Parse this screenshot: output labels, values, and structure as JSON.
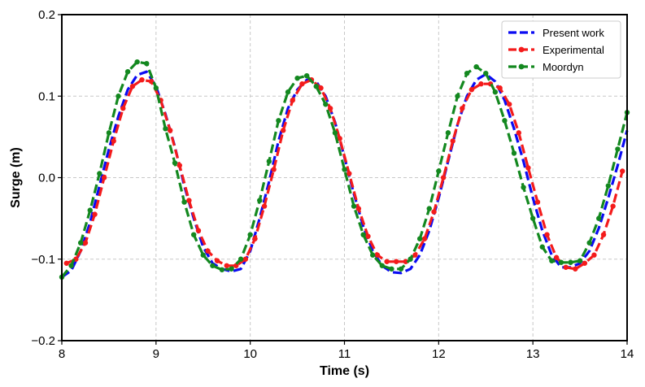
{
  "chart_data": {
    "type": "line",
    "title": "",
    "xlabel": "Time (s)",
    "ylabel": "Surge (m)",
    "xlim": [
      8,
      14
    ],
    "ylim": [
      -0.2,
      0.2
    ],
    "xticks": [
      8,
      9,
      10,
      11,
      12,
      13,
      14
    ],
    "yticks": [
      -0.2,
      -0.1,
      0.0,
      0.1,
      0.2
    ],
    "xtick_labels": [
      "8",
      "9",
      "10",
      "11",
      "12",
      "13",
      "14"
    ],
    "ytick_labels": [
      "−0.2",
      "−0.1",
      "0.0",
      "0.1",
      "0.2"
    ],
    "grid": true,
    "legend_position": "top-right",
    "series": [
      {
        "name": "Present work",
        "color": "#0b0bf2",
        "style": "dashed",
        "marker": "none",
        "x": [
          8.0,
          8.1,
          8.2,
          8.3,
          8.4,
          8.5,
          8.6,
          8.7,
          8.8,
          8.9,
          9.0,
          9.1,
          9.2,
          9.3,
          9.4,
          9.5,
          9.6,
          9.7,
          9.8,
          9.9,
          10.0,
          10.1,
          10.2,
          10.3,
          10.4,
          10.5,
          10.6,
          10.7,
          10.8,
          10.9,
          11.0,
          11.1,
          11.2,
          11.3,
          11.4,
          11.5,
          11.6,
          11.7,
          11.8,
          11.9,
          12.0,
          12.1,
          12.2,
          12.3,
          12.4,
          12.5,
          12.6,
          12.7,
          12.8,
          12.9,
          13.0,
          13.1,
          13.2,
          13.3,
          13.4,
          13.5,
          13.6,
          13.7,
          13.8,
          13.9,
          14.0
        ],
        "y": [
          -0.122,
          -0.114,
          -0.09,
          -0.055,
          -0.01,
          0.035,
          0.075,
          0.108,
          0.126,
          0.13,
          0.112,
          0.078,
          0.038,
          -0.01,
          -0.05,
          -0.085,
          -0.105,
          -0.112,
          -0.115,
          -0.112,
          -0.09,
          -0.05,
          -0.005,
          0.045,
          0.085,
          0.108,
          0.12,
          0.118,
          0.1,
          0.068,
          0.025,
          -0.02,
          -0.06,
          -0.09,
          -0.108,
          -0.116,
          -0.117,
          -0.112,
          -0.095,
          -0.065,
          -0.025,
          0.02,
          0.065,
          0.1,
          0.12,
          0.127,
          0.118,
          0.095,
          0.06,
          0.02,
          -0.025,
          -0.065,
          -0.095,
          -0.11,
          -0.11,
          -0.105,
          -0.09,
          -0.062,
          -0.025,
          0.015,
          0.058
        ]
      },
      {
        "name": "Experimental",
        "color": "#f41b1b",
        "style": "dashed",
        "marker": "circle",
        "x": [
          8.05,
          8.15,
          8.25,
          8.35,
          8.45,
          8.55,
          8.65,
          8.75,
          8.85,
          8.95,
          9.05,
          9.15,
          9.25,
          9.35,
          9.45,
          9.55,
          9.65,
          9.75,
          9.85,
          9.95,
          10.05,
          10.15,
          10.25,
          10.35,
          10.45,
          10.55,
          10.65,
          10.75,
          10.85,
          10.95,
          11.05,
          11.15,
          11.25,
          11.35,
          11.45,
          11.55,
          11.65,
          11.75,
          11.85,
          11.95,
          12.05,
          12.15,
          12.25,
          12.35,
          12.45,
          12.55,
          12.65,
          12.75,
          12.85,
          12.95,
          13.05,
          13.15,
          13.25,
          13.35,
          13.45,
          13.55,
          13.65,
          13.75,
          13.85,
          13.95
        ],
        "y": [
          -0.105,
          -0.1,
          -0.08,
          -0.045,
          0.0,
          0.045,
          0.085,
          0.112,
          0.12,
          0.118,
          0.095,
          0.058,
          0.015,
          -0.028,
          -0.065,
          -0.09,
          -0.102,
          -0.108,
          -0.108,
          -0.1,
          -0.075,
          -0.035,
          0.01,
          0.058,
          0.095,
          0.115,
          0.12,
          0.11,
          0.085,
          0.048,
          0.005,
          -0.038,
          -0.072,
          -0.095,
          -0.103,
          -0.103,
          -0.103,
          -0.095,
          -0.075,
          -0.042,
          0.0,
          0.045,
          0.085,
          0.108,
          0.115,
          0.115,
          0.11,
          0.09,
          0.055,
          0.012,
          -0.03,
          -0.07,
          -0.098,
          -0.11,
          -0.112,
          -0.105,
          -0.095,
          -0.07,
          -0.035,
          0.008
        ]
      },
      {
        "name": "Moordyn",
        "color": "#13881f",
        "style": "dashed",
        "marker": "circle",
        "x": [
          8.0,
          8.1,
          8.2,
          8.3,
          8.4,
          8.5,
          8.6,
          8.7,
          8.8,
          8.9,
          9.0,
          9.1,
          9.2,
          9.3,
          9.4,
          9.5,
          9.6,
          9.7,
          9.8,
          9.9,
          10.0,
          10.1,
          10.2,
          10.3,
          10.4,
          10.5,
          10.6,
          10.7,
          10.8,
          10.9,
          11.0,
          11.1,
          11.2,
          11.3,
          11.4,
          11.5,
          11.6,
          11.7,
          11.8,
          11.9,
          12.0,
          12.1,
          12.2,
          12.3,
          12.4,
          12.5,
          12.6,
          12.7,
          12.8,
          12.9,
          13.0,
          13.1,
          13.2,
          13.3,
          13.4,
          13.5,
          13.6,
          13.7,
          13.8,
          13.9,
          14.0
        ],
        "y": [
          -0.122,
          -0.108,
          -0.08,
          -0.04,
          0.005,
          0.055,
          0.1,
          0.13,
          0.142,
          0.14,
          0.11,
          0.06,
          0.018,
          -0.03,
          -0.07,
          -0.095,
          -0.108,
          -0.113,
          -0.112,
          -0.1,
          -0.07,
          -0.028,
          0.02,
          0.07,
          0.105,
          0.122,
          0.125,
          0.112,
          0.09,
          0.055,
          0.01,
          -0.035,
          -0.07,
          -0.095,
          -0.108,
          -0.112,
          -0.112,
          -0.1,
          -0.075,
          -0.038,
          0.008,
          0.055,
          0.1,
          0.128,
          0.136,
          0.128,
          0.105,
          0.07,
          0.03,
          -0.012,
          -0.05,
          -0.085,
          -0.102,
          -0.104,
          -0.104,
          -0.102,
          -0.08,
          -0.05,
          -0.01,
          0.035,
          0.08
        ]
      }
    ]
  }
}
